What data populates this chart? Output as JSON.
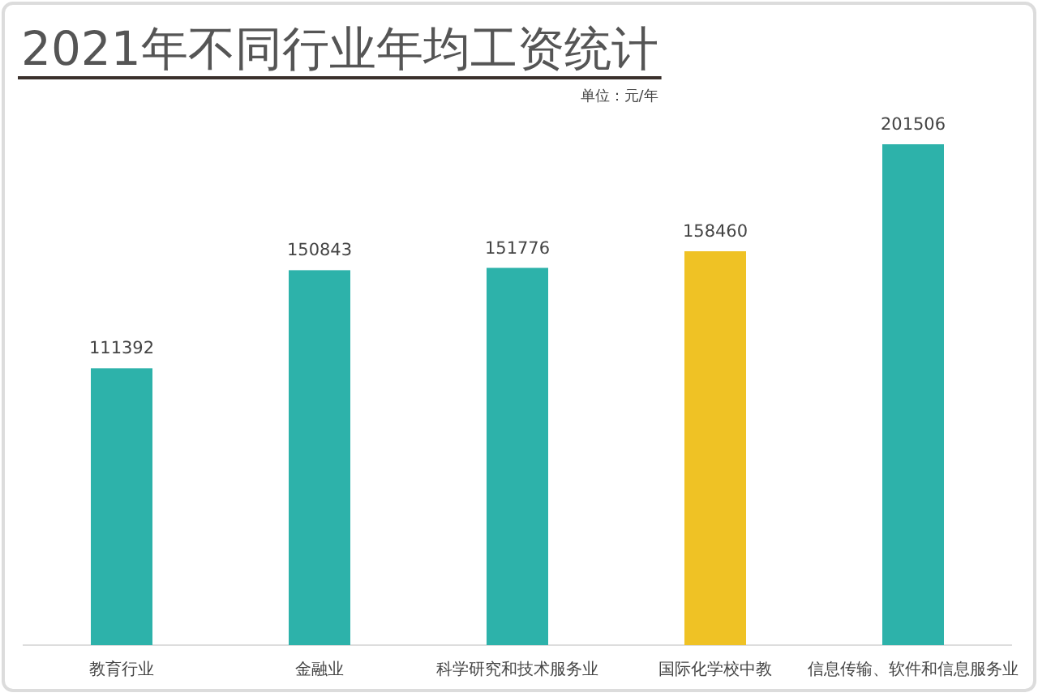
{
  "chart_data": {
    "type": "bar",
    "title": "2021年不同行业年均工资统计",
    "annotations": [
      "单位：元/年"
    ],
    "categories": [
      "教育行业",
      "金融业",
      "科学研究和技术服务业",
      "国际化学校中教",
      "信息传输、软件和信息服务业"
    ],
    "values": [
      111392,
      150843,
      151776,
      158460,
      201506
    ],
    "colors": [
      "#2db2aa",
      "#2db2aa",
      "#2db2aa",
      "#efc225",
      "#2db2aa"
    ],
    "data_labels": true
  }
}
